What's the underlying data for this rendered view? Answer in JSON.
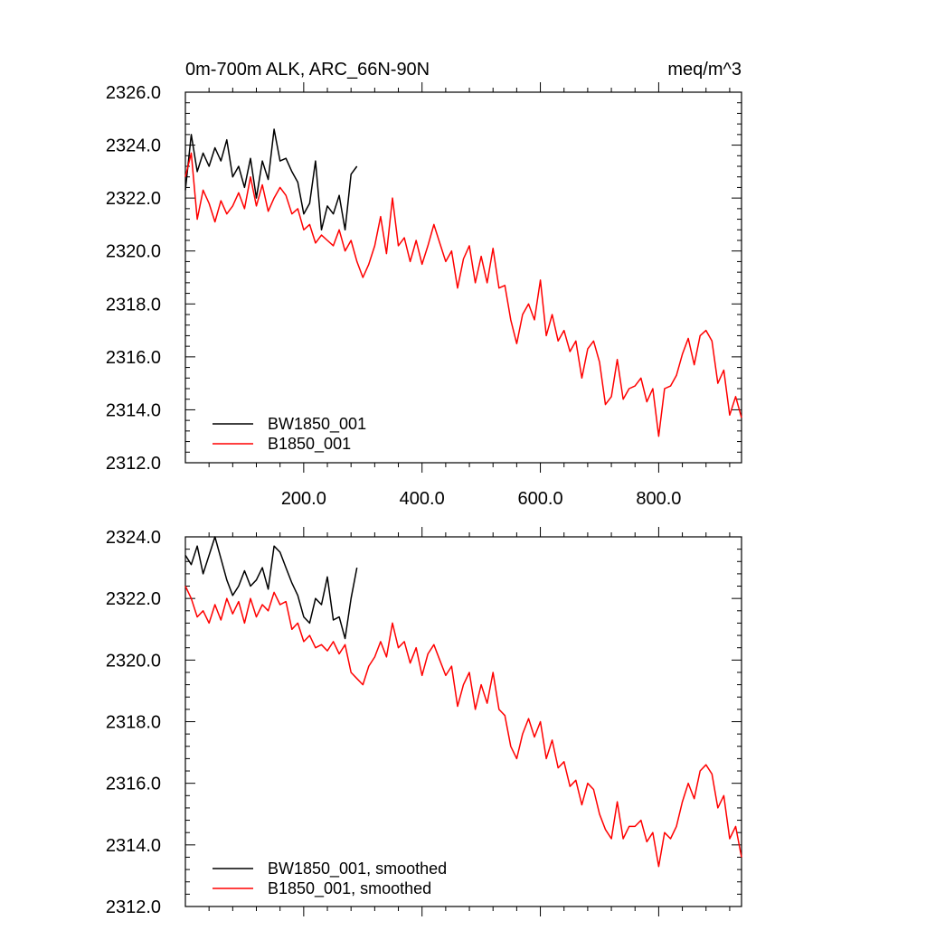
{
  "chart_data": [
    {
      "type": "line",
      "title": "0m-700m ALK, ARC_66N-90N",
      "units": "meq/m^3",
      "xlim": [
        0,
        940
      ],
      "ylim": [
        2312.0,
        2326.0
      ],
      "xticks": [
        200,
        400,
        600,
        800
      ],
      "xtick_labels": [
        "200.0",
        "400.0",
        "600.0",
        "800.0"
      ],
      "yticks": [
        2312,
        2314,
        2316,
        2318,
        2320,
        2322,
        2324,
        2326
      ],
      "ytick_labels": [
        "2312.0",
        "2314.0",
        "2316.0",
        "2318.0",
        "2320.0",
        "2322.0",
        "2324.0",
        "2326.0"
      ],
      "legend_position": "bottom-left",
      "series": [
        {
          "name": "BW1850_001",
          "color": "#000000",
          "x": [
            0,
            10,
            20,
            30,
            40,
            50,
            60,
            70,
            80,
            90,
            100,
            110,
            120,
            130,
            140,
            150,
            160,
            170,
            180,
            190,
            200,
            210,
            220,
            230,
            240,
            250,
            260,
            270,
            280,
            290
          ],
          "values": [
            2322.3,
            2324.4,
            2323.0,
            2323.7,
            2323.2,
            2323.9,
            2323.4,
            2324.2,
            2322.8,
            2323.2,
            2322.4,
            2323.5,
            2322.0,
            2323.4,
            2322.7,
            2324.6,
            2323.4,
            2323.5,
            2323.0,
            2322.6,
            2321.4,
            2321.8,
            2323.4,
            2320.8,
            2321.7,
            2321.4,
            2322.1,
            2320.8,
            2322.9,
            2323.2
          ]
        },
        {
          "name": "B1850_001",
          "color": "#ff0000",
          "x": [
            0,
            10,
            20,
            30,
            40,
            50,
            60,
            70,
            80,
            90,
            100,
            110,
            120,
            130,
            140,
            150,
            160,
            170,
            180,
            190,
            200,
            210,
            220,
            230,
            240,
            250,
            260,
            270,
            280,
            290,
            300,
            310,
            320,
            330,
            340,
            350,
            360,
            370,
            380,
            390,
            400,
            410,
            420,
            430,
            440,
            450,
            460,
            470,
            480,
            490,
            500,
            510,
            520,
            530,
            540,
            550,
            560,
            570,
            580,
            590,
            600,
            610,
            620,
            630,
            640,
            650,
            660,
            670,
            680,
            690,
            700,
            710,
            720,
            730,
            740,
            750,
            760,
            770,
            780,
            790,
            800,
            810,
            820,
            830,
            840,
            850,
            860,
            870,
            880,
            890,
            900,
            910,
            920,
            930,
            940
          ],
          "values": [
            2322.8,
            2323.7,
            2321.2,
            2322.3,
            2321.8,
            2321.1,
            2321.9,
            2321.4,
            2321.7,
            2322.2,
            2321.6,
            2322.8,
            2321.7,
            2322.5,
            2321.5,
            2322.0,
            2322.4,
            2322.1,
            2321.4,
            2321.6,
            2320.8,
            2321.0,
            2320.3,
            2320.6,
            2320.4,
            2320.2,
            2320.8,
            2320.0,
            2320.4,
            2319.6,
            2319.0,
            2319.5,
            2320.2,
            2321.3,
            2319.9,
            2322.0,
            2320.2,
            2320.5,
            2319.6,
            2320.4,
            2319.5,
            2320.2,
            2321.0,
            2320.3,
            2319.6,
            2320.0,
            2318.6,
            2319.7,
            2320.2,
            2318.8,
            2319.8,
            2318.8,
            2320.1,
            2318.6,
            2318.7,
            2317.4,
            2316.5,
            2317.6,
            2318.0,
            2317.4,
            2318.9,
            2316.8,
            2317.6,
            2316.6,
            2317.0,
            2316.2,
            2316.6,
            2315.2,
            2316.3,
            2316.6,
            2315.8,
            2314.2,
            2314.5,
            2315.9,
            2314.4,
            2314.8,
            2314.9,
            2315.2,
            2314.3,
            2314.8,
            2313.0,
            2314.8,
            2314.9,
            2315.3,
            2316.1,
            2316.7,
            2315.7,
            2316.8,
            2317.0,
            2316.6,
            2315.0,
            2315.5,
            2313.8,
            2314.5,
            2313.7
          ]
        }
      ]
    },
    {
      "type": "line",
      "xlim": [
        0,
        940
      ],
      "ylim": [
        2312.0,
        2324.0
      ],
      "yticks": [
        2312,
        2314,
        2316,
        2318,
        2320,
        2322,
        2324
      ],
      "ytick_labels": [
        "2312.0",
        "2314.0",
        "2316.0",
        "2318.0",
        "2320.0",
        "2322.0",
        "2324.0"
      ],
      "legend_position": "bottom-left",
      "series": [
        {
          "name": "BW1850_001, smoothed",
          "color": "#000000",
          "x": [
            0,
            10,
            20,
            30,
            40,
            50,
            60,
            70,
            80,
            90,
            100,
            110,
            120,
            130,
            140,
            150,
            160,
            170,
            180,
            190,
            200,
            210,
            220,
            230,
            240,
            250,
            260,
            270,
            280,
            290
          ],
          "values": [
            2323.4,
            2323.1,
            2323.7,
            2322.8,
            2323.4,
            2324.0,
            2323.3,
            2322.6,
            2322.1,
            2322.4,
            2322.9,
            2322.4,
            2322.6,
            2323.0,
            2322.3,
            2323.7,
            2323.5,
            2323.0,
            2322.5,
            2322.1,
            2321.4,
            2321.2,
            2322.0,
            2321.8,
            2322.7,
            2321.3,
            2321.4,
            2320.7,
            2322.0,
            2323.0
          ]
        },
        {
          "name": "B1850_001, smoothed",
          "color": "#ff0000",
          "x": [
            0,
            10,
            20,
            30,
            40,
            50,
            60,
            70,
            80,
            90,
            100,
            110,
            120,
            130,
            140,
            150,
            160,
            170,
            180,
            190,
            200,
            210,
            220,
            230,
            240,
            250,
            260,
            270,
            280,
            290,
            300,
            310,
            320,
            330,
            340,
            350,
            360,
            370,
            380,
            390,
            400,
            410,
            420,
            430,
            440,
            450,
            460,
            470,
            480,
            490,
            500,
            510,
            520,
            530,
            540,
            550,
            560,
            570,
            580,
            590,
            600,
            610,
            620,
            630,
            640,
            650,
            660,
            670,
            680,
            690,
            700,
            710,
            720,
            730,
            740,
            750,
            760,
            770,
            780,
            790,
            800,
            810,
            820,
            830,
            840,
            850,
            860,
            870,
            880,
            890,
            900,
            910,
            920,
            930,
            940
          ],
          "values": [
            2322.4,
            2322.0,
            2321.4,
            2321.6,
            2321.2,
            2321.8,
            2321.3,
            2322.0,
            2321.5,
            2321.9,
            2321.2,
            2322.0,
            2321.4,
            2321.8,
            2321.6,
            2322.2,
            2321.8,
            2321.9,
            2321.0,
            2321.2,
            2320.6,
            2320.8,
            2320.4,
            2320.5,
            2320.3,
            2320.6,
            2320.2,
            2320.5,
            2319.6,
            2319.4,
            2319.2,
            2319.8,
            2320.1,
            2320.6,
            2320.1,
            2321.2,
            2320.4,
            2320.6,
            2319.9,
            2320.4,
            2319.5,
            2320.2,
            2320.5,
            2320.0,
            2319.5,
            2319.8,
            2318.5,
            2319.2,
            2319.6,
            2318.4,
            2319.2,
            2318.6,
            2319.6,
            2318.4,
            2318.2,
            2317.2,
            2316.8,
            2317.6,
            2318.1,
            2317.5,
            2318.0,
            2316.8,
            2317.4,
            2316.5,
            2316.7,
            2315.9,
            2316.1,
            2315.3,
            2316.0,
            2315.8,
            2315.0,
            2314.5,
            2314.2,
            2315.4,
            2314.2,
            2314.6,
            2314.6,
            2314.8,
            2314.1,
            2314.4,
            2313.3,
            2314.4,
            2314.2,
            2314.6,
            2315.4,
            2316.0,
            2315.5,
            2316.4,
            2316.6,
            2316.3,
            2315.2,
            2315.6,
            2314.2,
            2314.6,
            2313.6
          ]
        }
      ]
    }
  ]
}
